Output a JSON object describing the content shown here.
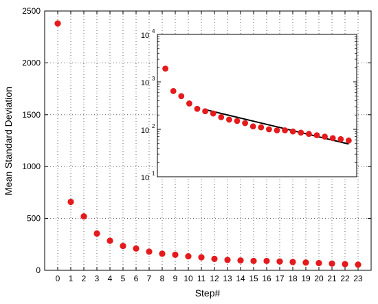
{
  "chart_data": [
    {
      "type": "scatter",
      "title": "",
      "xlabel": "Step#",
      "ylabel": "Mean Standard Deviation",
      "xlim": [
        -1,
        24
      ],
      "ylim": [
        0,
        2500
      ],
      "grid": true,
      "x_ticks": [
        "0",
        "1",
        "2",
        "3",
        "4",
        "5",
        "6",
        "7",
        "8",
        "9",
        "10",
        "11",
        "12",
        "13",
        "14",
        "15",
        "16",
        "17",
        "18",
        "19",
        "20",
        "21",
        "22",
        "23"
      ],
      "y_ticks": [
        "0",
        "500",
        "1000",
        "1500",
        "2000",
        "2500"
      ],
      "series": [
        {
          "color": "#e41a1c",
          "x": [
            0,
            1,
            2,
            3,
            4,
            5,
            6,
            7,
            8,
            9,
            10,
            11,
            12,
            13,
            14,
            15,
            16,
            17,
            18,
            19,
            20,
            21,
            22,
            23
          ],
          "y": [
            2380,
            660,
            520,
            355,
            285,
            235,
            210,
            180,
            160,
            150,
            135,
            125,
            110,
            100,
            95,
            90,
            90,
            85,
            80,
            75,
            70,
            65,
            60,
            55
          ]
        }
      ]
    },
    {
      "type": "scatter",
      "title": "",
      "xlabel": "",
      "ylabel": "",
      "yscale": "log",
      "xlim": [
        -1,
        24
      ],
      "ylim": [
        10,
        10000
      ],
      "grid": false,
      "y_ticks": [
        {
          "base": "10",
          "exp": "1"
        },
        {
          "base": "10",
          "exp": "2"
        },
        {
          "base": "10",
          "exp": "3"
        },
        {
          "base": "10",
          "exp": "4"
        }
      ],
      "series": [
        {
          "color": "#e41a1c",
          "x": [
            0,
            1,
            2,
            3,
            4,
            5,
            6,
            7,
            8,
            9,
            10,
            11,
            12,
            13,
            14,
            15,
            16,
            17,
            18,
            19,
            20,
            21,
            22,
            23
          ],
          "y": [
            1900,
            640,
            500,
            350,
            270,
            240,
            215,
            180,
            160,
            150,
            135,
            115,
            110,
            100,
            95,
            95,
            90,
            85,
            80,
            75,
            70,
            65,
            62,
            58
          ]
        },
        {
          "type": "line",
          "color": "#000000",
          "x": [
            5,
            23
          ],
          "y": [
            260,
            49
          ]
        }
      ]
    }
  ]
}
